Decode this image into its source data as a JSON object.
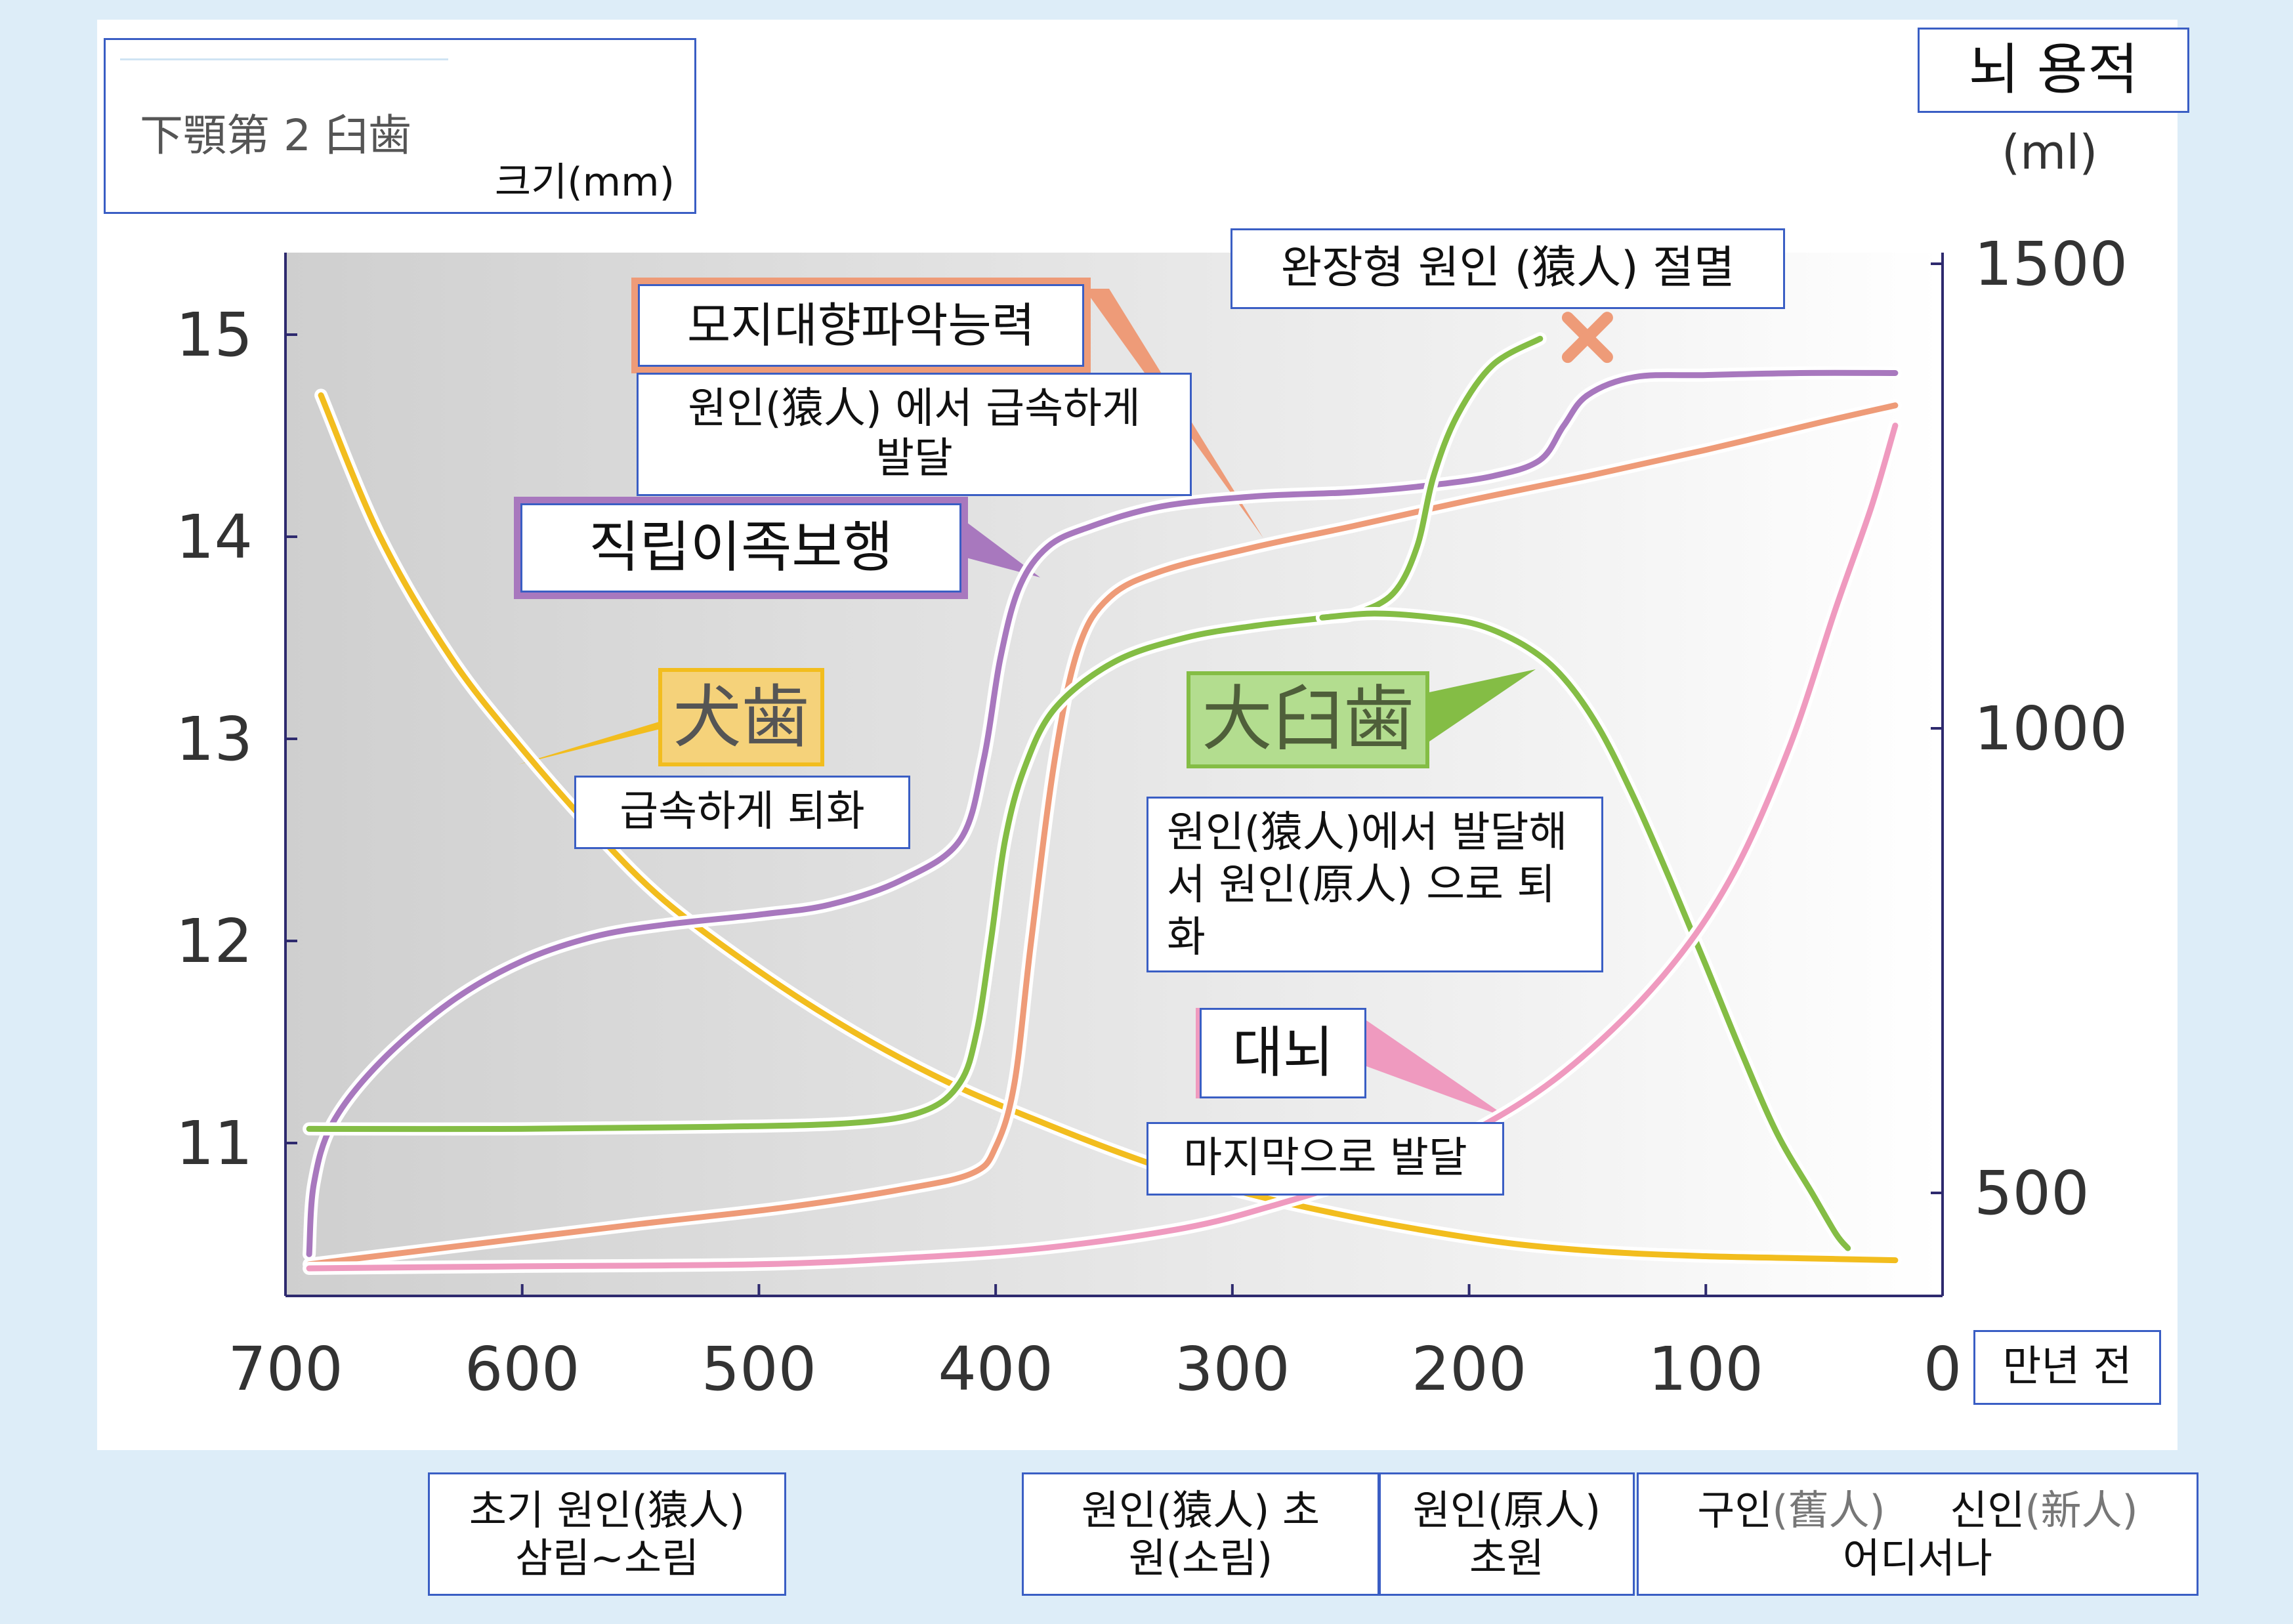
{
  "chart_data": {
    "type": "line",
    "x_unit": "만년 전",
    "x_ticks": [
      700,
      600,
      500,
      400,
      300,
      200,
      100,
      0
    ],
    "xlim": [
      700,
      0
    ],
    "y_left_ticks": [
      15,
      14,
      13,
      12,
      11
    ],
    "y_left_lim": [
      10.3,
      15.4
    ],
    "y_right_ticks": [
      1500,
      1000,
      500
    ],
    "y_right_lim": [
      400,
      1550
    ],
    "y_right_unit": "(ml)",
    "series": [
      {
        "color": "#f2bd1e",
        "points": [
          [
            685,
            14.7
          ],
          [
            660,
            14.0
          ],
          [
            630,
            13.4
          ],
          [
            600,
            12.95
          ],
          [
            570,
            12.55
          ],
          [
            540,
            12.2
          ],
          [
            500,
            11.85
          ],
          [
            460,
            11.55
          ],
          [
            420,
            11.3
          ],
          [
            380,
            11.1
          ],
          [
            340,
            10.92
          ],
          [
            300,
            10.77
          ],
          [
            260,
            10.66
          ],
          [
            220,
            10.57
          ],
          [
            180,
            10.5
          ],
          [
            140,
            10.46
          ],
          [
            100,
            10.44
          ],
          [
            60,
            10.43
          ],
          [
            20,
            10.42
          ]
        ]
      },
      {
        "color": "#a878be",
        "points": [
          [
            690,
            10.45
          ],
          [
            688,
            10.8
          ],
          [
            680,
            11.1
          ],
          [
            660,
            11.4
          ],
          [
            630,
            11.7
          ],
          [
            600,
            11.9
          ],
          [
            570,
            12.02
          ],
          [
            540,
            12.08
          ],
          [
            500,
            12.13
          ],
          [
            470,
            12.18
          ],
          [
            440,
            12.3
          ],
          [
            415,
            12.5
          ],
          [
            405,
            12.9
          ],
          [
            398,
            13.4
          ],
          [
            390,
            13.75
          ],
          [
            378,
            13.95
          ],
          [
            360,
            14.05
          ],
          [
            330,
            14.15
          ],
          [
            290,
            14.2
          ],
          [
            250,
            14.22
          ],
          [
            220,
            14.25
          ],
          [
            190,
            14.3
          ],
          [
            170,
            14.38
          ],
          [
            160,
            14.55
          ],
          [
            150,
            14.7
          ],
          [
            130,
            14.79
          ],
          [
            100,
            14.8
          ],
          [
            60,
            14.81
          ],
          [
            20,
            14.81
          ]
        ]
      },
      {
        "color": "#ee9b78",
        "points": [
          [
            690,
            10.4
          ],
          [
            620,
            10.5
          ],
          [
            550,
            10.6
          ],
          [
            490,
            10.68
          ],
          [
            440,
            10.77
          ],
          [
            410,
            10.85
          ],
          [
            400,
            10.98
          ],
          [
            392,
            11.3
          ],
          [
            385,
            12.0
          ],
          [
            375,
            12.9
          ],
          [
            365,
            13.45
          ],
          [
            352,
            13.7
          ],
          [
            330,
            13.83
          ],
          [
            290,
            13.95
          ],
          [
            250,
            14.05
          ],
          [
            200,
            14.18
          ],
          [
            150,
            14.3
          ],
          [
            100,
            14.43
          ],
          [
            50,
            14.57
          ],
          [
            20,
            14.65
          ]
        ]
      },
      {
        "color": "#84bd45",
        "points": [
          [
            690,
            11.07
          ],
          [
            600,
            11.07
          ],
          [
            520,
            11.08
          ],
          [
            460,
            11.1
          ],
          [
            430,
            11.16
          ],
          [
            415,
            11.3
          ],
          [
            408,
            11.55
          ],
          [
            402,
            12.0
          ],
          [
            396,
            12.5
          ],
          [
            388,
            12.85
          ],
          [
            375,
            13.15
          ],
          [
            350,
            13.38
          ],
          [
            320,
            13.5
          ],
          [
            290,
            13.56
          ],
          [
            260,
            13.6
          ],
          [
            248,
            13.62
          ],
          [
            232,
            13.72
          ],
          [
            222,
            13.95
          ],
          [
            215,
            14.3
          ],
          [
            205,
            14.6
          ],
          [
            190,
            14.85
          ],
          [
            170,
            14.98
          ]
        ]
      },
      {
        "color": "#84bd45",
        "points": [
          [
            262,
            13.6
          ],
          [
            240,
            13.62
          ],
          [
            215,
            13.6
          ],
          [
            195,
            13.56
          ],
          [
            175,
            13.45
          ],
          [
            160,
            13.3
          ],
          [
            145,
            13.05
          ],
          [
            130,
            12.7
          ],
          [
            115,
            12.3
          ],
          [
            100,
            11.88
          ],
          [
            85,
            11.45
          ],
          [
            70,
            11.05
          ],
          [
            55,
            10.75
          ],
          [
            45,
            10.55
          ],
          [
            40,
            10.48
          ]
        ]
      },
      {
        "color": "#ef9abf",
        "points": [
          [
            690,
            10.38
          ],
          [
            600,
            10.39
          ],
          [
            500,
            10.4
          ],
          [
            440,
            10.43
          ],
          [
            380,
            10.48
          ],
          [
            320,
            10.58
          ],
          [
            280,
            10.7
          ],
          [
            240,
            10.85
          ],
          [
            200,
            11.05
          ],
          [
            160,
            11.35
          ],
          [
            120,
            11.8
          ],
          [
            90,
            12.3
          ],
          [
            65,
            12.95
          ],
          [
            45,
            13.65
          ],
          [
            30,
            14.15
          ],
          [
            20,
            14.55
          ]
        ]
      }
    ]
  },
  "labels": {
    "top_left_title": "下顎第 2 臼歯",
    "top_left_unit": "크기(mm)",
    "right_title": "뇌 용적",
    "extinction": "완장형 원인 (猿人) 절멸",
    "grip_title": "모지대향파악능력",
    "grip_desc": "원인(猿人) 에서 급속하게 발달",
    "bipedal": "직립이족보행",
    "canine_title": "犬歯",
    "canine_desc": "급속하게 퇴화",
    "molar_title": "大臼歯",
    "molar_desc": "원인(猿人)에서 발달해서 원인(原人) 으로 퇴화",
    "brain_title": "대뇌",
    "brain_desc": "마지막으로 발달"
  },
  "bottom": {
    "early": "초기 원인(猿人) 삼림~소림",
    "saru": "원인(猿人) 초원(소림)",
    "hara": "원인(原人) 초원",
    "kyujin_a": "구인",
    "kyujin_b": "(舊人)",
    "shinjin_a": "신인",
    "shinjin_b": "(新人)",
    "anywhere": "어디서나"
  }
}
